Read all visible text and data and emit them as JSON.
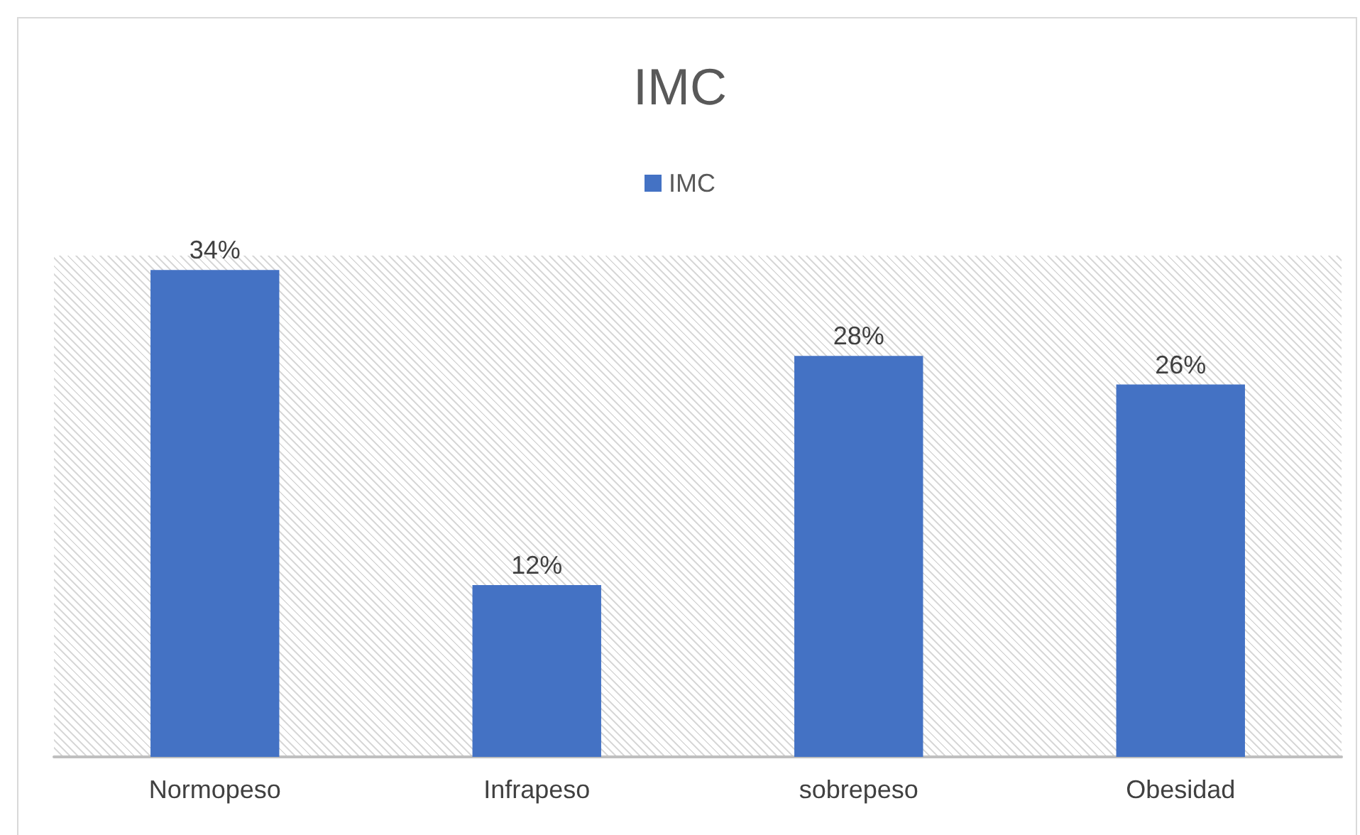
{
  "chart_data": {
    "type": "bar",
    "title": "IMC",
    "categories": [
      "Normopeso",
      "Infrapeso",
      "sobrepeso",
      "Obesidad"
    ],
    "series": [
      {
        "name": "IMC",
        "color": "#4472c4",
        "values": [
          34,
          12,
          28,
          26
        ],
        "value_labels": [
          "34%",
          "12%",
          "28%",
          "26%"
        ]
      }
    ],
    "legend": "top",
    "grid": false
  }
}
